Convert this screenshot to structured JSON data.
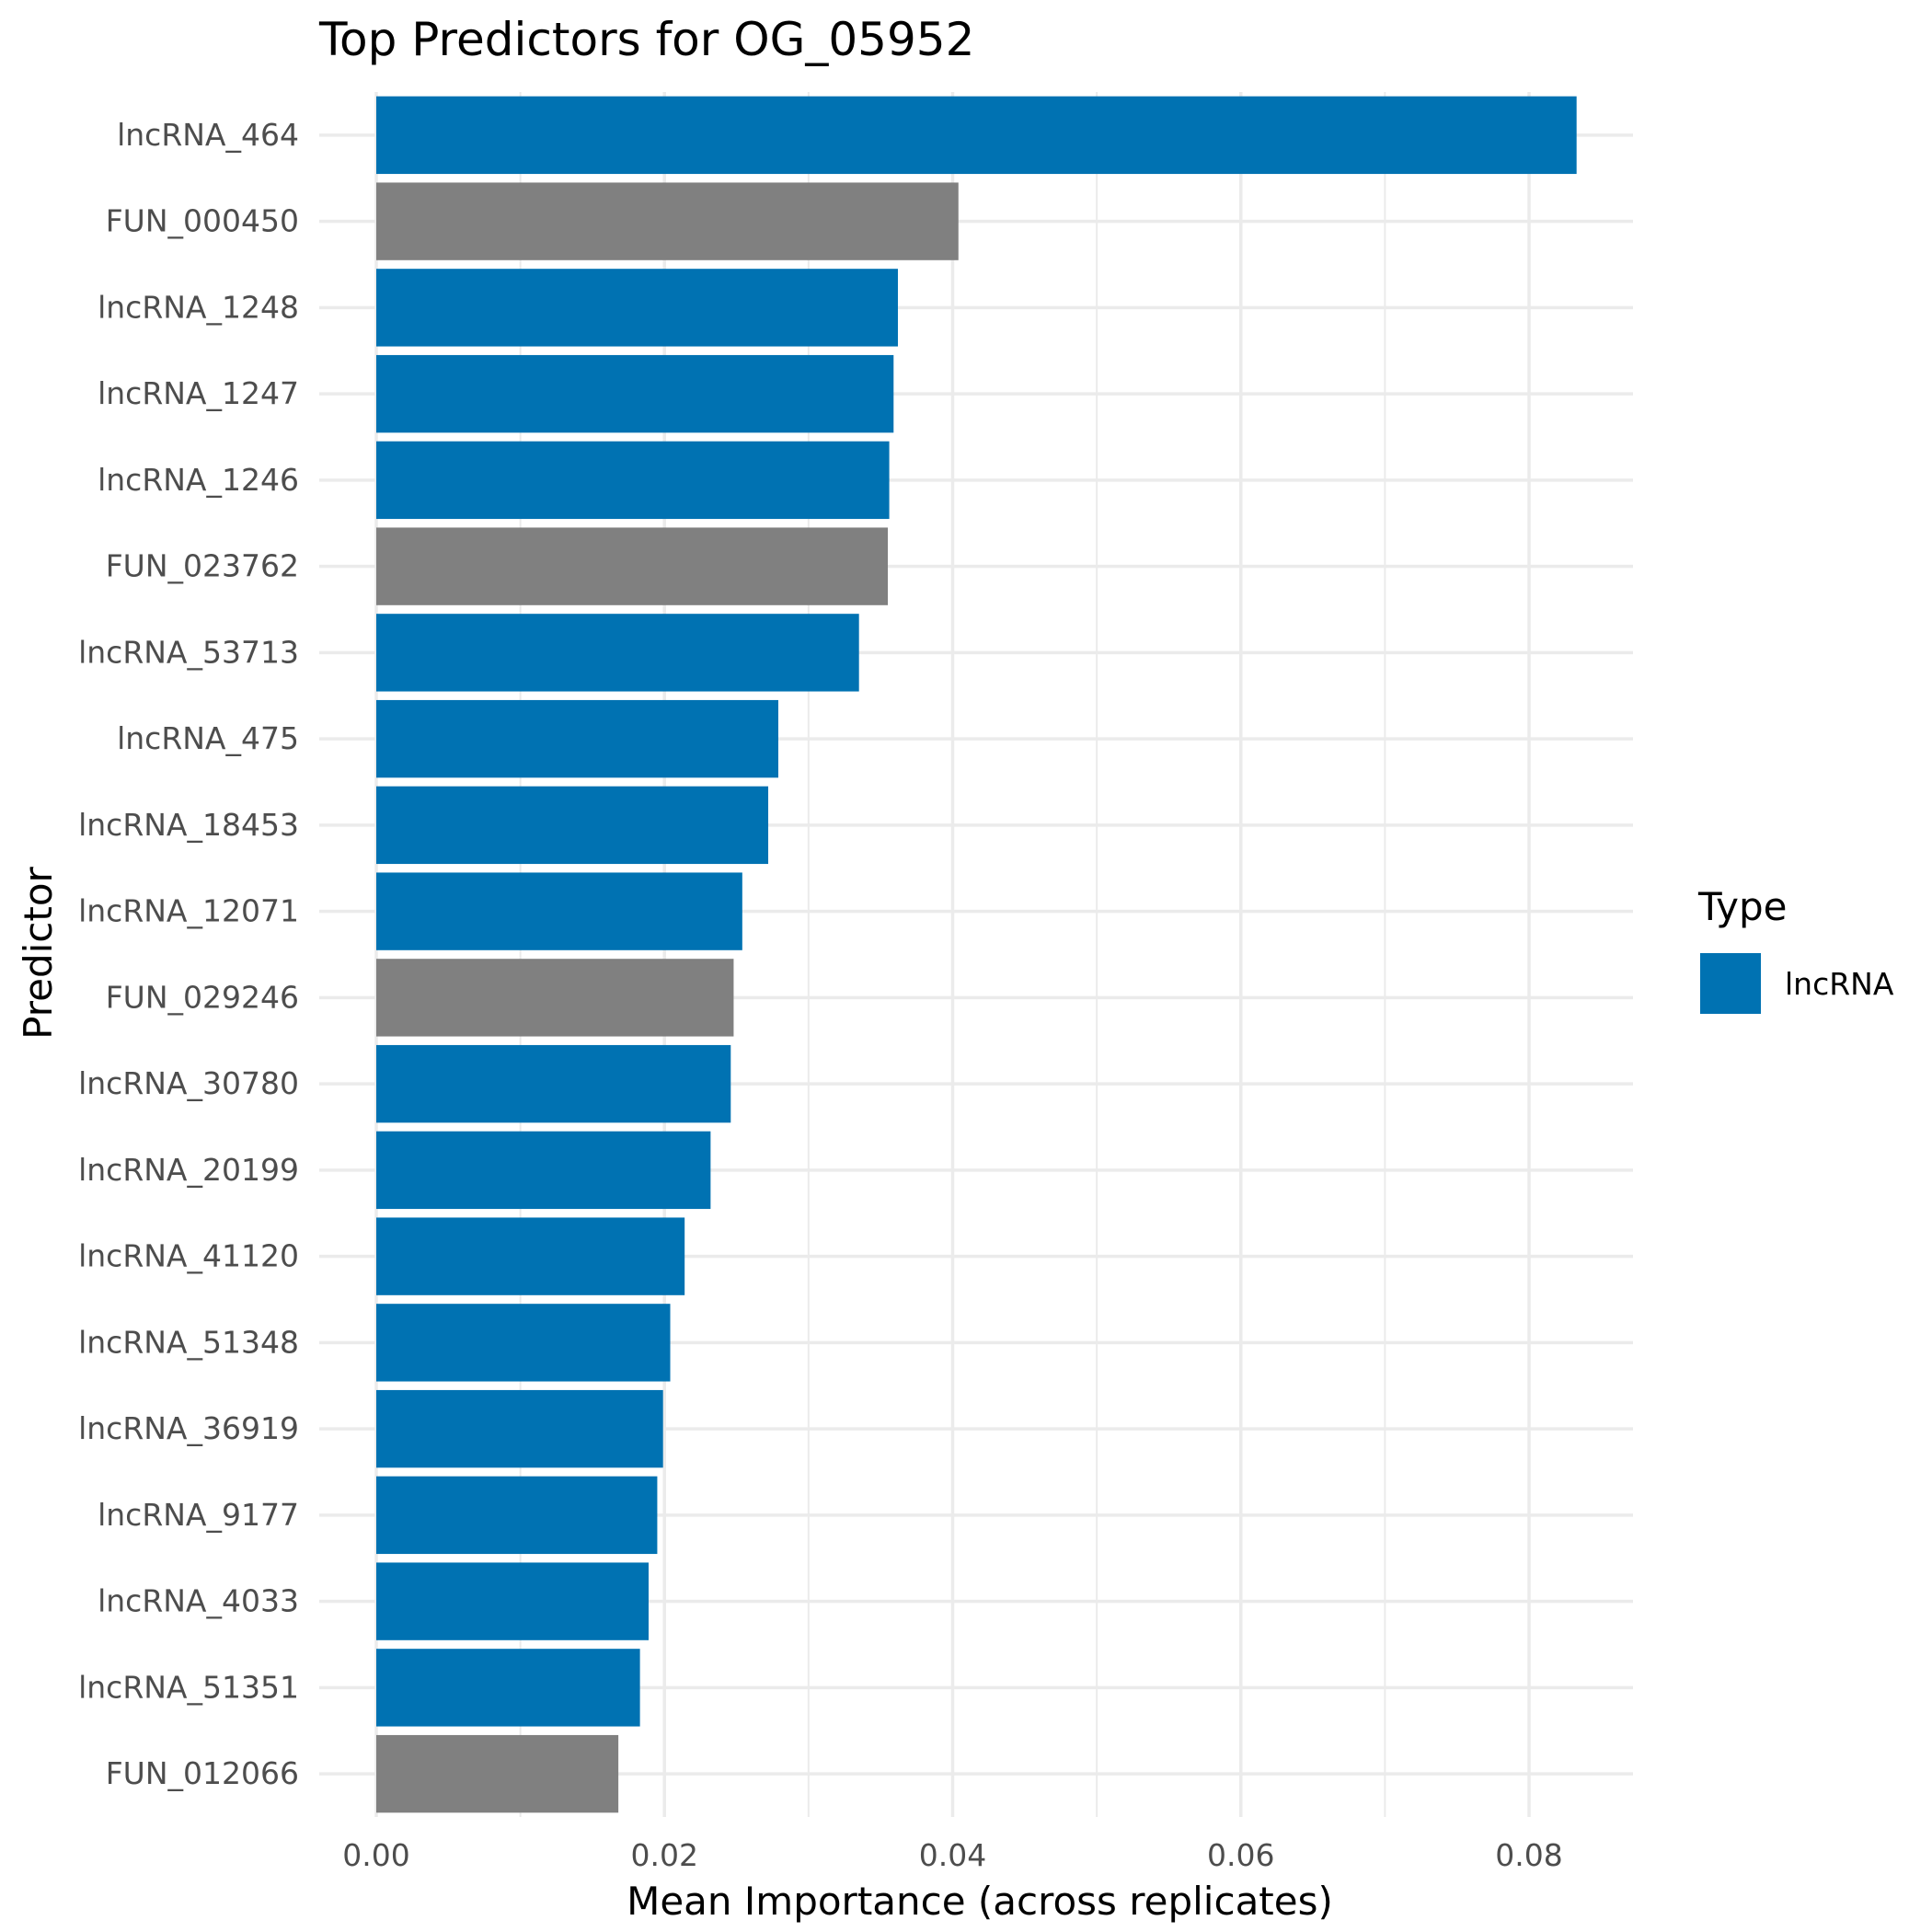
{
  "chart_data": {
    "type": "bar",
    "orientation": "horizontal",
    "title": "Top Predictors for OG_05952",
    "xlabel": "Mean Importance (across replicates)",
    "ylabel": "Predictor",
    "xlim": [
      0,
      0.087
    ],
    "x_ticks": [
      0,
      0.02,
      0.04,
      0.06,
      0.08
    ],
    "x_tick_labels": [
      "0.00",
      "0.02",
      "0.04",
      "0.06",
      "0.08"
    ],
    "grid": true,
    "legend": {
      "title": "Type",
      "placement": "right",
      "entries": [
        {
          "label": "lncRNA",
          "color": "#0072B2"
        }
      ]
    },
    "colors": {
      "lncRNA": "#0072B2",
      "other": "#808080"
    },
    "categories": [
      "lncRNA_464",
      "FUN_000450",
      "lncRNA_1248",
      "lncRNA_1247",
      "lncRNA_1246",
      "FUN_023762",
      "lncRNA_53713",
      "lncRNA_475",
      "lncRNA_18453",
      "lncRNA_12071",
      "FUN_029246",
      "lncRNA_30780",
      "lncRNA_20199",
      "lncRNA_41120",
      "lncRNA_51348",
      "lncRNA_36919",
      "lncRNA_9177",
      "lncRNA_4033",
      "lncRNA_51351",
      "FUN_012066"
    ],
    "values": [
      0.0833,
      0.0404,
      0.0362,
      0.0359,
      0.0356,
      0.0355,
      0.0335,
      0.0279,
      0.0272,
      0.0254,
      0.0248,
      0.0246,
      0.0232,
      0.0214,
      0.0204,
      0.0199,
      0.0195,
      0.0189,
      0.0183,
      0.0168
    ],
    "types": [
      "lncRNA",
      "other",
      "lncRNA",
      "lncRNA",
      "lncRNA",
      "other",
      "lncRNA",
      "lncRNA",
      "lncRNA",
      "lncRNA",
      "other",
      "lncRNA",
      "lncRNA",
      "lncRNA",
      "lncRNA",
      "lncRNA",
      "lncRNA",
      "lncRNA",
      "lncRNA",
      "other"
    ]
  }
}
